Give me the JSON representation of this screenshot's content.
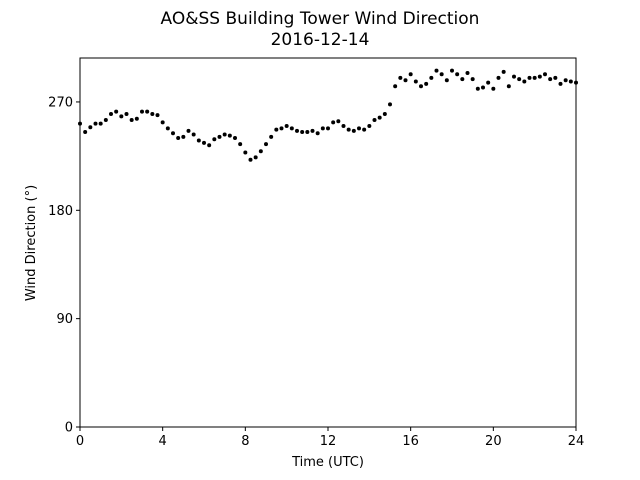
{
  "chart_data": {
    "type": "scatter",
    "title": "AO&SS Building Tower Wind Direction",
    "subtitle": "2016-12-14",
    "x_label": "Time (UTC)",
    "y_label": "Wind Direction (°)",
    "color": "#000000",
    "xlim": [
      0,
      24
    ],
    "xticks": [
      0,
      4,
      8,
      12,
      16,
      20,
      24
    ],
    "ylim": [
      0,
      306.5
    ],
    "yticks": [
      0,
      90,
      180,
      270
    ],
    "x": [
      0,
      0.25,
      0.5,
      0.75,
      1,
      1.25,
      1.5,
      1.75,
      2,
      2.25,
      2.5,
      2.75,
      3,
      3.25,
      3.5,
      3.75,
      4,
      4.25,
      4.5,
      4.75,
      5,
      5.25,
      5.5,
      5.75,
      6,
      6.25,
      6.5,
      6.75,
      7,
      7.25,
      7.5,
      7.75,
      8,
      8.25,
      8.5,
      8.75,
      9,
      9.25,
      9.5,
      9.75,
      10,
      10.25,
      10.5,
      10.75,
      11,
      11.25,
      11.5,
      11.75,
      12,
      12.25,
      12.5,
      12.75,
      13,
      13.25,
      13.5,
      13.75,
      14,
      14.25,
      14.5,
      14.75,
      15,
      15.25,
      15.5,
      15.75,
      16,
      16.25,
      16.5,
      16.75,
      17,
      17.25,
      17.5,
      17.75,
      18,
      18.25,
      18.5,
      18.75,
      19,
      19.25,
      19.5,
      19.75,
      20,
      20.25,
      20.5,
      20.75,
      21,
      21.25,
      21.5,
      21.75,
      22,
      22.25,
      22.5,
      22.75,
      23,
      23.25,
      23.5,
      23.75,
      24
    ],
    "values": [
      252,
      245,
      249,
      252,
      252,
      255,
      260,
      262,
      258,
      260,
      255,
      256,
      262,
      262,
      260,
      259,
      253,
      248,
      244,
      240,
      241,
      246,
      243,
      238,
      236,
      234,
      239,
      241,
      243,
      242,
      240,
      235,
      228,
      222,
      224,
      229,
      235,
      241,
      247,
      248,
      250,
      248,
      246,
      245,
      245,
      246,
      244,
      248,
      248,
      253,
      254,
      250,
      247,
      246,
      248,
      247,
      250,
      255,
      257,
      260,
      268,
      283,
      290,
      288,
      293,
      287,
      283,
      285,
      290,
      296,
      293,
      288,
      296,
      293,
      289,
      294,
      289,
      281,
      282,
      286,
      281,
      290,
      295,
      283,
      291,
      289,
      287,
      290,
      290,
      291,
      293,
      289,
      290,
      285,
      288,
      287,
      286
    ]
  }
}
